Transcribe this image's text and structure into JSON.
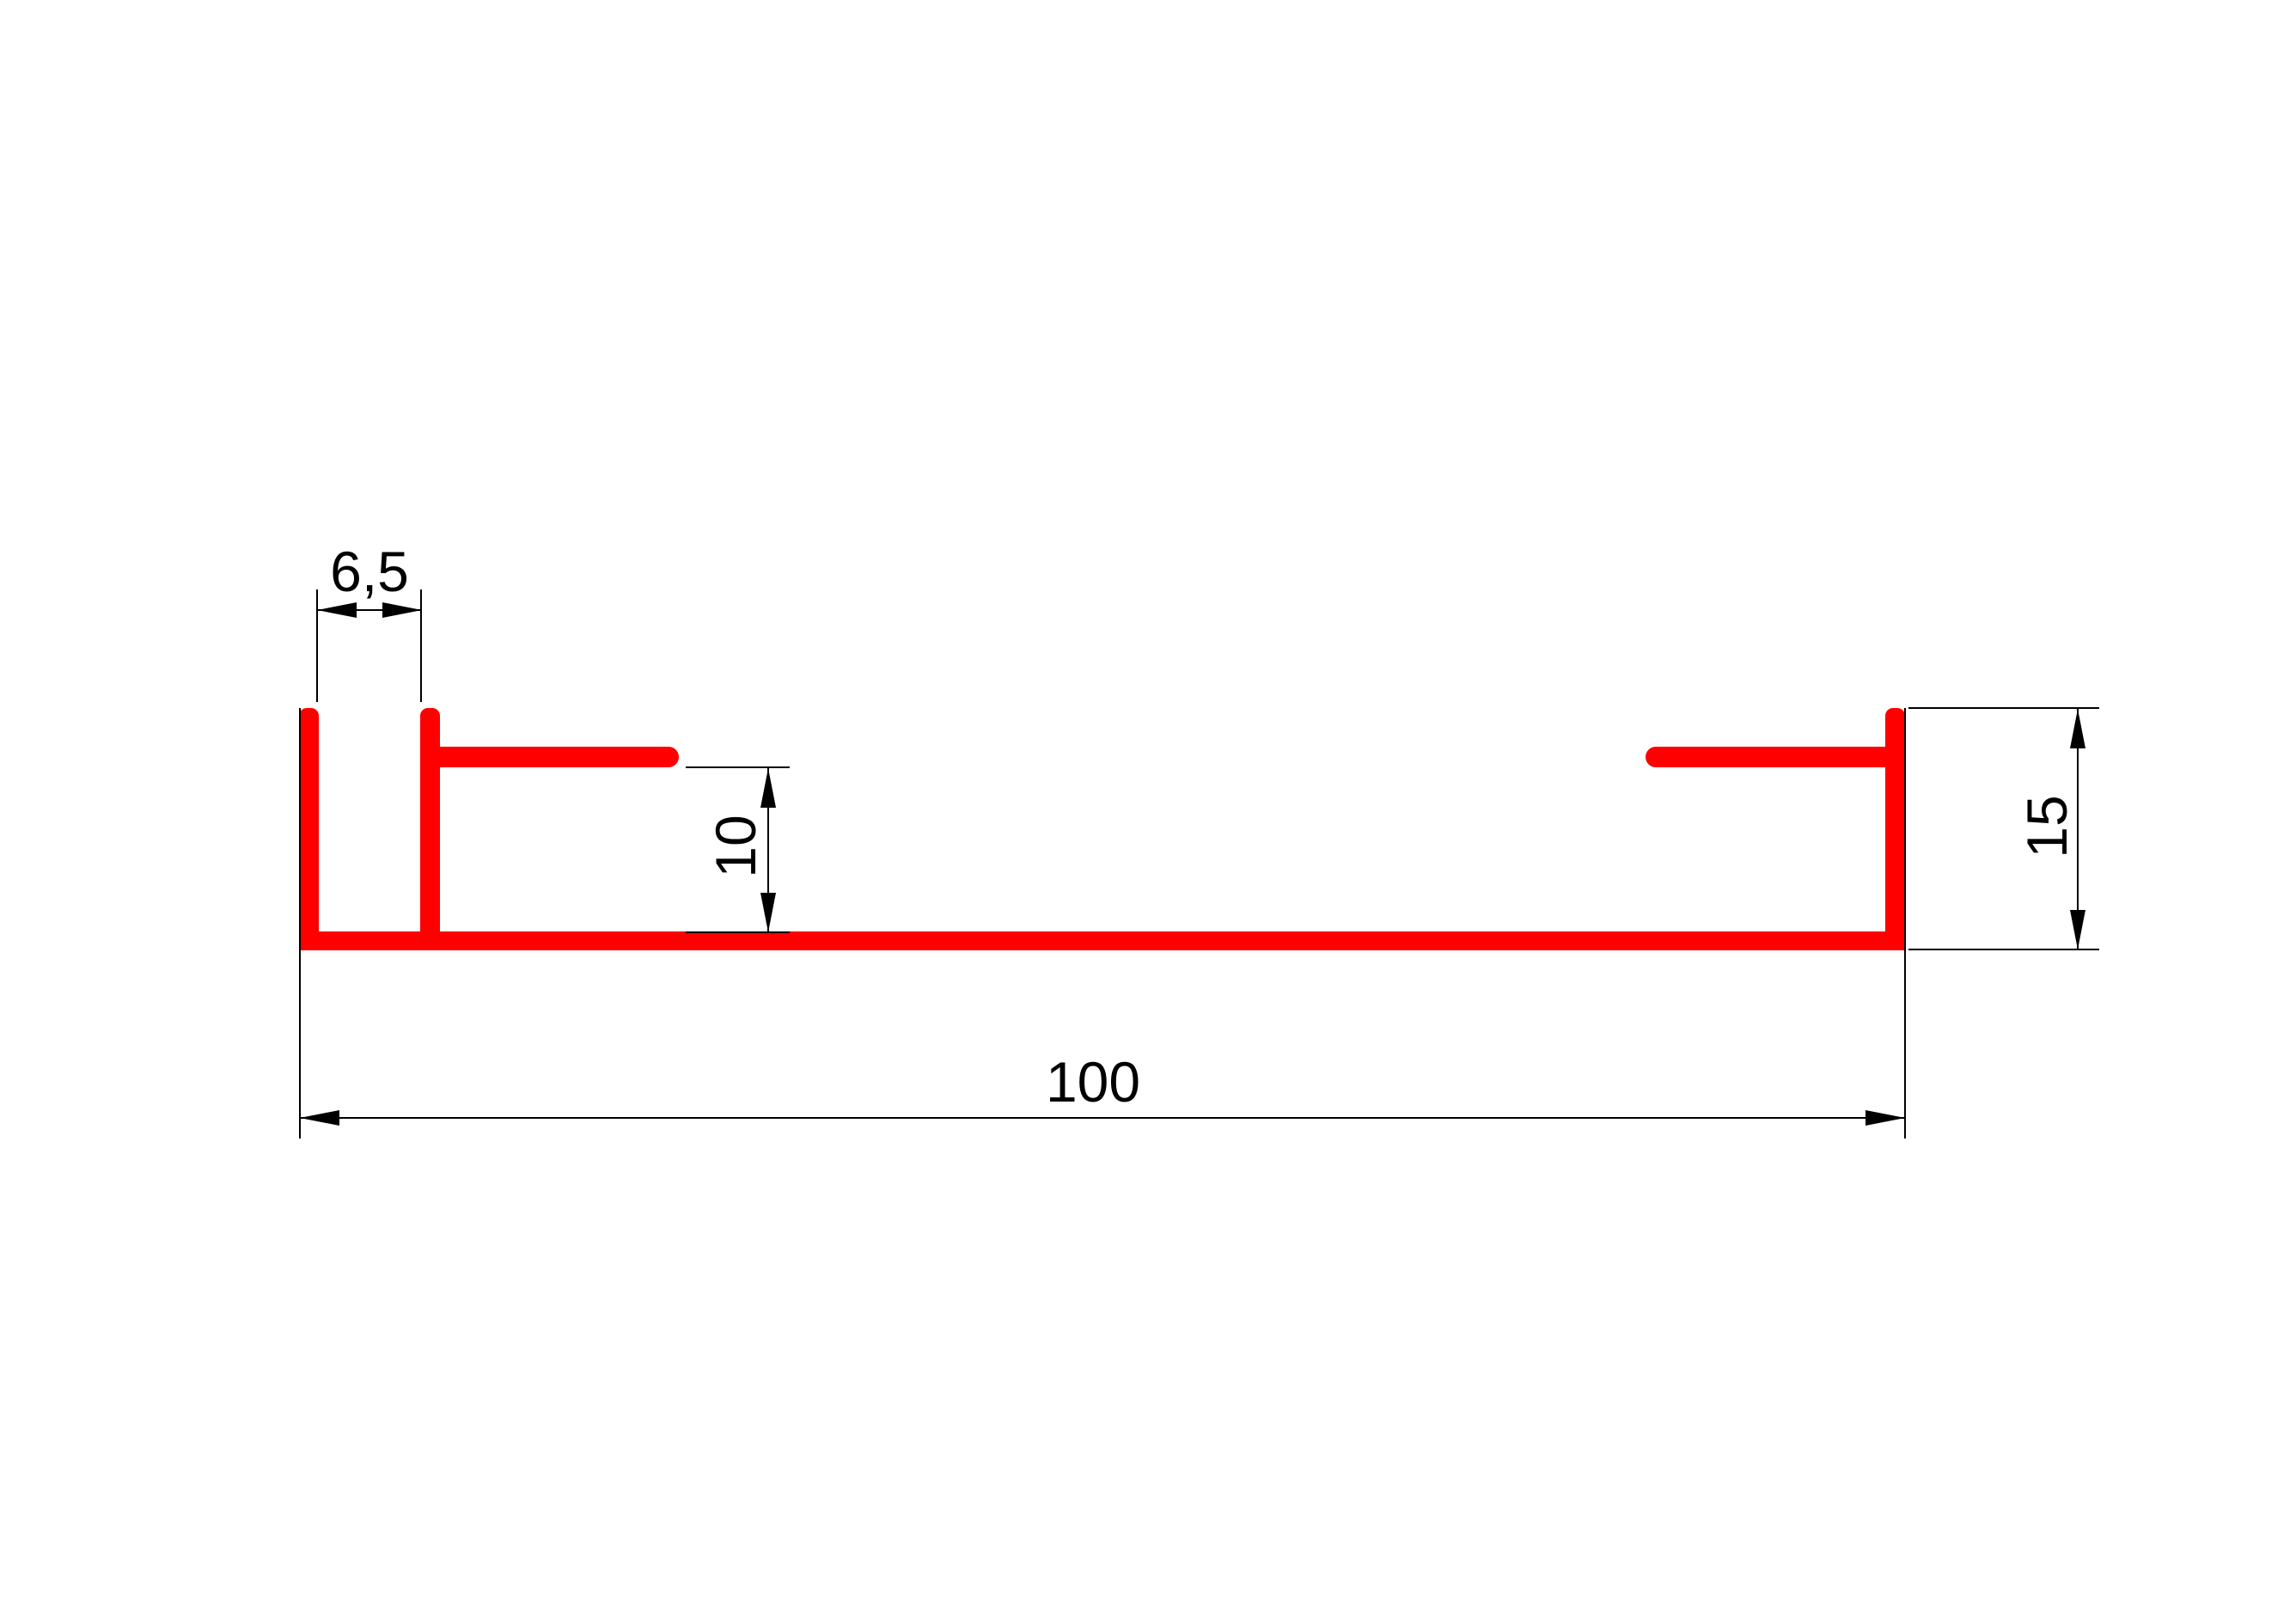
{
  "drawing": {
    "title": "Profile cross-section technical drawing",
    "background_color": "#ffffff",
    "profile_color": "#ff0000",
    "line_color": "#000000",
    "dimensions": {
      "slot_width": {
        "label": "6,5",
        "orientation": "horizontal",
        "location": "top-left slot between flanges"
      },
      "arm_clearance": {
        "label": "10",
        "orientation": "vertical",
        "location": "gap between left arm underside and base"
      },
      "profile_height": {
        "label": "15",
        "orientation": "vertical",
        "location": "right side overall height"
      },
      "profile_width": {
        "label": "100",
        "orientation": "horizontal",
        "location": "bottom overall width"
      }
    }
  }
}
